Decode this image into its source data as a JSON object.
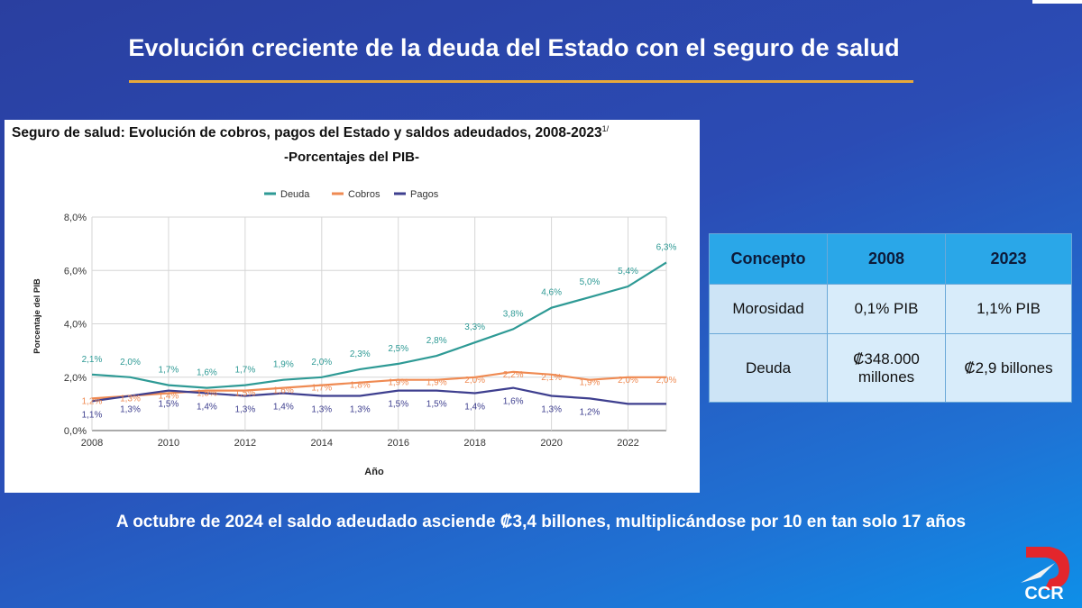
{
  "slide": {
    "title": "Evolución creciente de la deuda del Estado con el seguro de salud",
    "bottom_note": "A octubre de 2024 el saldo adeudado asciende ₡3,4 billones, multiplicándose por 10 en tan solo 17 años",
    "logo_text": "CCR",
    "colors": {
      "title_rule": "#e8a93a",
      "background": "#2b4cb5"
    }
  },
  "table": {
    "headers": [
      "Concepto",
      "2008",
      "2023"
    ],
    "rows": [
      [
        "Morosidad",
        "0,1% PIB",
        "1,1% PIB"
      ],
      [
        "Deuda",
        "₡348.000 millones",
        "₡2,9 billones"
      ]
    ]
  },
  "chart_data": {
    "type": "line",
    "title": "Seguro de salud: Evolución de cobros, pagos del Estado y saldos adeudados, 2008-2023",
    "title_superscript": "1/",
    "subtitle": "-Porcentajes del PIB-",
    "xlabel": "Año",
    "ylabel": "Porcentaje del PIB",
    "ylim": [
      0,
      8
    ],
    "yticks": [
      "0,0%",
      "2,0%",
      "4,0%",
      "6,0%",
      "8,0%"
    ],
    "xticks": [
      "2008",
      "2010",
      "2012",
      "2014",
      "2016",
      "2018",
      "2020",
      "2022"
    ],
    "x": [
      2008,
      2009,
      2010,
      2011,
      2012,
      2013,
      2014,
      2015,
      2016,
      2017,
      2018,
      2019,
      2020,
      2021,
      2022,
      2023
    ],
    "grid": true,
    "legend_position": "top-center",
    "series": [
      {
        "name": "Deuda",
        "color": "#2e9a95",
        "values": [
          2.1,
          2.0,
          1.7,
          1.6,
          1.7,
          1.9,
          2.0,
          2.3,
          2.5,
          2.8,
          3.3,
          3.8,
          4.6,
          5.0,
          5.4,
          6.3
        ],
        "labels": [
          "2,1%",
          "2,0%",
          "1,7%",
          "1,6%",
          "1,7%",
          "1,9%",
          "2,0%",
          "2,3%",
          "2,5%",
          "2,8%",
          "3,3%",
          "3,8%",
          "4,6%",
          "5,0%",
          "5,4%",
          "6,3%"
        ]
      },
      {
        "name": "Cobros",
        "color": "#ef8a52",
        "values": [
          1.2,
          1.3,
          1.4,
          1.5,
          1.5,
          1.6,
          1.7,
          1.8,
          1.9,
          1.9,
          2.0,
          2.2,
          2.1,
          1.9,
          2.0,
          2.0
        ],
        "labels": [
          "1,2%",
          "1,3%",
          "1,4%",
          "1,5%",
          "1,5%",
          "1,6%",
          "1,7%",
          "1,8%",
          "1,9%",
          "1,9%",
          "2,0%",
          "2,2%",
          "2,1%",
          "1,9%",
          "2,0%",
          "2,0%"
        ]
      },
      {
        "name": "Pagos",
        "color": "#3e3f8f",
        "values": [
          1.1,
          1.3,
          1.5,
          1.4,
          1.3,
          1.4,
          1.3,
          1.3,
          1.5,
          1.5,
          1.4,
          1.6,
          1.3,
          1.2,
          1.0,
          1.0
        ],
        "labels": [
          "1,1%",
          "1,3%",
          "1,5%",
          "1,4%",
          "1,3%",
          "1,4%",
          "1,3%",
          "1,3%",
          "1,5%",
          "1,5%",
          "1,4%",
          "1,6%",
          "1,3%",
          "1,2%",
          "",
          ""
        ]
      }
    ]
  }
}
